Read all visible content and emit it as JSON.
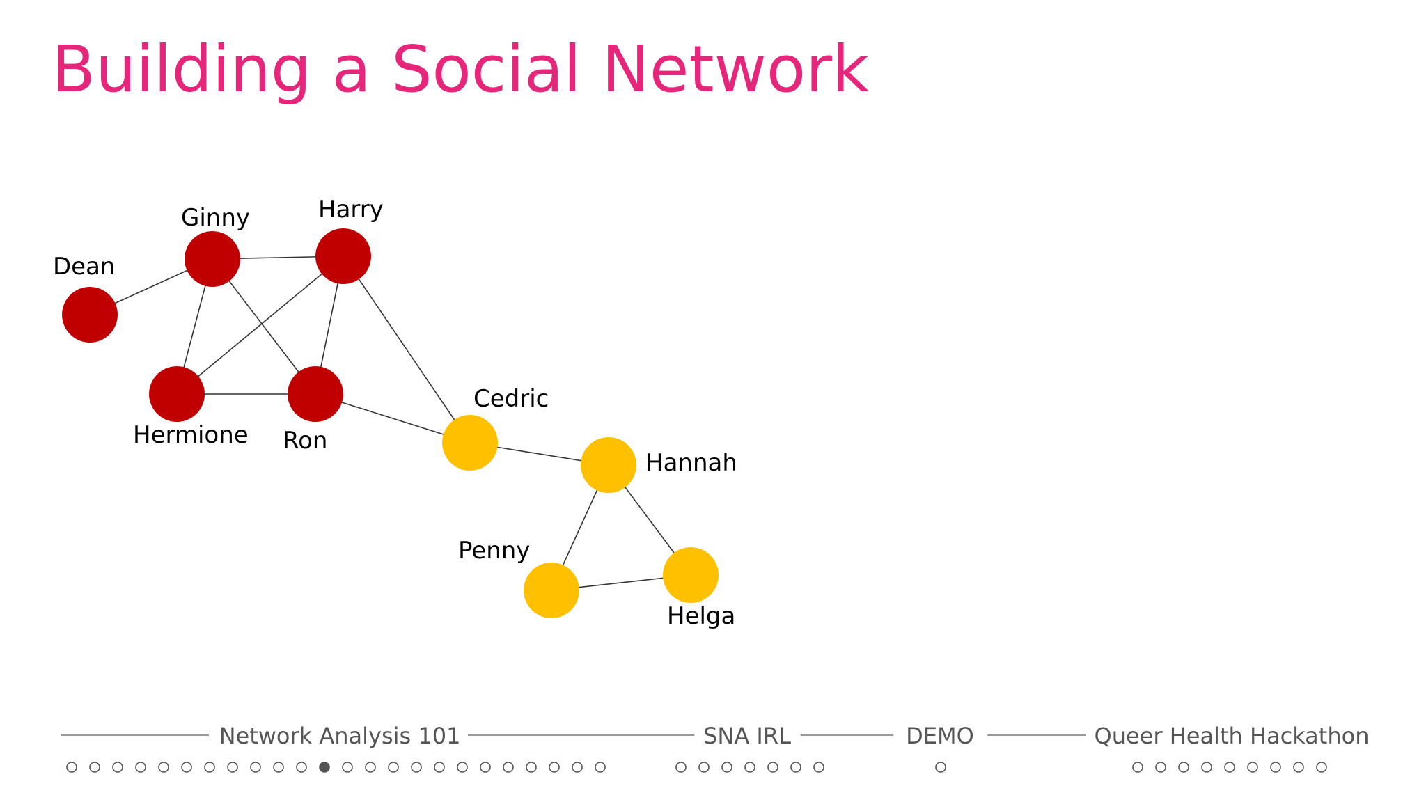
{
  "slide": {
    "title": "Building a Social Network"
  },
  "colors": {
    "title": "#e5267b",
    "group_red": "#c00000",
    "group_yellow": "#ffc000",
    "edge": "#333333",
    "nav_text": "#555555",
    "nav_line": "#777777"
  },
  "network": {
    "nodes": [
      {
        "id": "dean",
        "label": "Dean",
        "group": "red"
      },
      {
        "id": "ginny",
        "label": "Ginny",
        "group": "red"
      },
      {
        "id": "harry",
        "label": "Harry",
        "group": "red"
      },
      {
        "id": "hermione",
        "label": "Hermione",
        "group": "red"
      },
      {
        "id": "ron",
        "label": "Ron",
        "group": "red"
      },
      {
        "id": "cedric",
        "label": "Cedric",
        "group": "yellow"
      },
      {
        "id": "hannah",
        "label": "Hannah",
        "group": "yellow"
      },
      {
        "id": "penny",
        "label": "Penny",
        "group": "yellow"
      },
      {
        "id": "helga",
        "label": "Helga",
        "group": "yellow"
      }
    ],
    "edges": [
      [
        "dean",
        "ginny"
      ],
      [
        "ginny",
        "harry"
      ],
      [
        "ginny",
        "hermione"
      ],
      [
        "ginny",
        "ron"
      ],
      [
        "harry",
        "hermione"
      ],
      [
        "harry",
        "ron"
      ],
      [
        "harry",
        "cedric"
      ],
      [
        "hermione",
        "ron"
      ],
      [
        "ron",
        "cedric"
      ],
      [
        "cedric",
        "hannah"
      ],
      [
        "hannah",
        "penny"
      ],
      [
        "hannah",
        "helga"
      ],
      [
        "penny",
        "helga"
      ]
    ]
  },
  "progress_nav": {
    "sections": [
      {
        "label": "Network Analysis 101",
        "dots": 24,
        "current_index": 11
      },
      {
        "label": "SNA IRL",
        "dots": 7,
        "current_index": -1
      },
      {
        "label": "DEMO",
        "dots": 1,
        "current_index": -1
      },
      {
        "label": "Queer Health Hackathon",
        "dots": 9,
        "current_index": -1
      }
    ]
  }
}
